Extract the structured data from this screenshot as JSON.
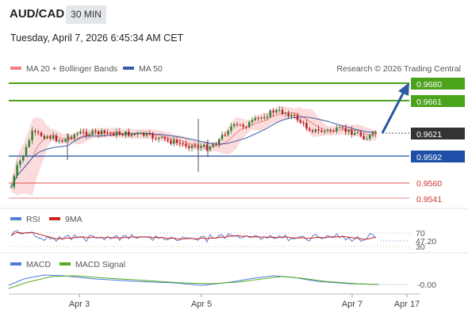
{
  "header": {
    "symbol": "AUD/CAD",
    "timeframe": "30 MIN",
    "datetime": "Tuesday, April 7, 2026 6:45:34 AM CET"
  },
  "legend": {
    "ma20_label": "MA 20 + Bollinger Bands",
    "ma50_label": "MA 50",
    "credit": "Research © 2026 Trading Central",
    "rsi_label": "RSI",
    "rsi_ma_label": "9MA",
    "macd_label": "MACD",
    "macd_signal_label": "MACD Signal"
  },
  "colors": {
    "resistance": "#4aa31a",
    "support_blue": "#1e4ea8",
    "support_red": "#e05050",
    "current": "#333333",
    "bull_candle": "#2e7d32",
    "bear_candle": "#b71c1c",
    "bollinger_fill": "#f9d0d0",
    "ma20": "#f08080",
    "ma50": "#3b5ca8",
    "rsi": "#5a7fd0",
    "rsi_ma": "#cc2222",
    "macd": "#4a7de0",
    "macd_signal": "#5aaa20",
    "arrow": "#2a5aa0"
  },
  "chart_data": [
    {
      "type": "candlestick",
      "title": "AUD/CAD",
      "price_range": [
        0.9523,
        0.9692
      ],
      "x_ticks": [
        "Apr 3",
        "Apr 5",
        "Apr 7",
        "Apr 17"
      ],
      "levels": [
        {
          "value": 0.968,
          "label": "0.9680",
          "kind": "resistance"
        },
        {
          "value": 0.9661,
          "label": "0.9661",
          "kind": "resistance"
        },
        {
          "value": 0.9621,
          "label": "0.9621",
          "kind": "current"
        },
        {
          "value": 0.9592,
          "label": "0.9592",
          "kind": "support"
        },
        {
          "value": 0.956,
          "label": "0.9560",
          "kind": "support"
        },
        {
          "value": 0.9541,
          "label": "0.9541",
          "kind": "support"
        }
      ],
      "forecast_arrow": {
        "from": 0.9621,
        "to": 0.968
      }
    },
    {
      "type": "line",
      "title": "RSI",
      "series": [
        {
          "name": "RSI"
        },
        {
          "name": "9MA"
        }
      ],
      "reference_levels": [
        70,
        30
      ],
      "current_value": "47.20"
    },
    {
      "type": "line",
      "title": "MACD",
      "series": [
        {
          "name": "MACD"
        },
        {
          "name": "MACD Signal"
        }
      ],
      "current_value": "-0.00"
    }
  ]
}
